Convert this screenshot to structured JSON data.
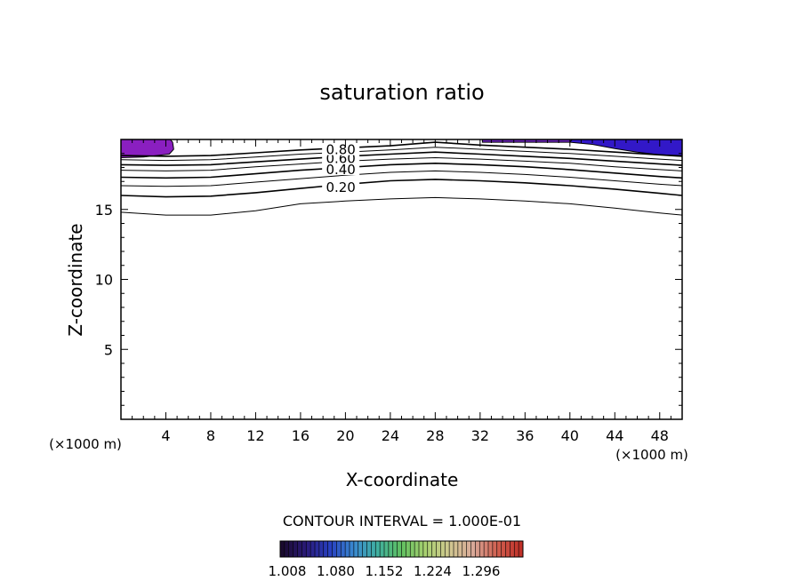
{
  "chart_data": {
    "type": "contour",
    "title": "saturation ratio",
    "xlabel": "X-coordinate",
    "ylabel": "Z-coordinate",
    "x_unit_left": "(×1000 m)",
    "x_unit_right": "(×1000 m)",
    "xlim": [
      0,
      50
    ],
    "ylim": [
      0,
      20
    ],
    "x_ticks": [
      4,
      8,
      12,
      16,
      20,
      24,
      28,
      32,
      36,
      40,
      44,
      48
    ],
    "y_ticks": [
      5,
      10,
      15
    ],
    "contour_interval_text": "CONTOUR INTERVAL = 1.000E-01",
    "contour_labels": [
      "0.80",
      "0.60",
      "0.40",
      "0.20"
    ],
    "contours": [
      {
        "level": 0.1,
        "label": "",
        "points": [
          [
            0,
            14.8
          ],
          [
            4,
            14.6
          ],
          [
            8,
            14.6
          ],
          [
            12,
            14.9
          ],
          [
            16,
            15.4
          ],
          [
            20,
            15.6
          ],
          [
            24,
            15.75
          ],
          [
            28,
            15.85
          ],
          [
            32,
            15.75
          ],
          [
            36,
            15.6
          ],
          [
            40,
            15.4
          ],
          [
            44,
            15.1
          ],
          [
            48,
            14.75
          ],
          [
            50,
            14.6
          ]
        ]
      },
      {
        "level": 0.2,
        "label": "0.20",
        "points": [
          [
            0,
            16.0
          ],
          [
            4,
            15.9
          ],
          [
            8,
            15.95
          ],
          [
            12,
            16.2
          ],
          [
            16,
            16.5
          ],
          [
            20,
            16.8
          ],
          [
            24,
            17.05
          ],
          [
            28,
            17.15
          ],
          [
            32,
            17.05
          ],
          [
            36,
            16.9
          ],
          [
            40,
            16.7
          ],
          [
            44,
            16.45
          ],
          [
            48,
            16.15
          ],
          [
            50,
            16.0
          ]
        ]
      },
      {
        "level": 0.3,
        "label": "",
        "points": [
          [
            0,
            16.7
          ],
          [
            4,
            16.65
          ],
          [
            8,
            16.7
          ],
          [
            12,
            16.95
          ],
          [
            16,
            17.2
          ],
          [
            20,
            17.45
          ],
          [
            24,
            17.65
          ],
          [
            28,
            17.75
          ],
          [
            32,
            17.65
          ],
          [
            36,
            17.5
          ],
          [
            40,
            17.3
          ],
          [
            44,
            17.05
          ],
          [
            48,
            16.8
          ],
          [
            50,
            16.7
          ]
        ]
      },
      {
        "level": 0.4,
        "label": "0.40",
        "points": [
          [
            0,
            17.3
          ],
          [
            4,
            17.25
          ],
          [
            8,
            17.3
          ],
          [
            12,
            17.55
          ],
          [
            16,
            17.8
          ],
          [
            20,
            18.0
          ],
          [
            24,
            18.2
          ],
          [
            28,
            18.3
          ],
          [
            32,
            18.2
          ],
          [
            36,
            18.05
          ],
          [
            40,
            17.85
          ],
          [
            44,
            17.6
          ],
          [
            48,
            17.35
          ],
          [
            50,
            17.25
          ]
        ]
      },
      {
        "level": 0.5,
        "label": "",
        "points": [
          [
            0,
            17.8
          ],
          [
            4,
            17.75
          ],
          [
            8,
            17.8
          ],
          [
            12,
            18.05
          ],
          [
            16,
            18.25
          ],
          [
            20,
            18.45
          ],
          [
            24,
            18.6
          ],
          [
            28,
            18.7
          ],
          [
            32,
            18.6
          ],
          [
            36,
            18.45
          ],
          [
            40,
            18.3
          ],
          [
            44,
            18.05
          ],
          [
            48,
            17.85
          ],
          [
            50,
            17.75
          ]
        ]
      },
      {
        "level": 0.6,
        "label": "0.60",
        "points": [
          [
            0,
            18.2
          ],
          [
            4,
            18.15
          ],
          [
            8,
            18.2
          ],
          [
            12,
            18.4
          ],
          [
            16,
            18.6
          ],
          [
            20,
            18.8
          ],
          [
            24,
            18.95
          ],
          [
            28,
            19.1
          ],
          [
            32,
            18.95
          ],
          [
            36,
            18.8
          ],
          [
            40,
            18.65
          ],
          [
            44,
            18.45
          ],
          [
            48,
            18.25
          ],
          [
            50,
            18.15
          ]
        ]
      },
      {
        "level": 0.7,
        "label": "",
        "points": [
          [
            0,
            18.55
          ],
          [
            4,
            18.5
          ],
          [
            8,
            18.55
          ],
          [
            12,
            18.75
          ],
          [
            16,
            18.95
          ],
          [
            20,
            19.1
          ],
          [
            24,
            19.25
          ],
          [
            28,
            19.45
          ],
          [
            32,
            19.3
          ],
          [
            36,
            19.15
          ],
          [
            40,
            19.0
          ],
          [
            44,
            18.8
          ],
          [
            48,
            18.6
          ],
          [
            50,
            18.5
          ]
        ]
      },
      {
        "level": 0.8,
        "label": "0.80",
        "points": [
          [
            0,
            18.85
          ],
          [
            4,
            18.8
          ],
          [
            8,
            18.85
          ],
          [
            12,
            19.05
          ],
          [
            16,
            19.25
          ],
          [
            20,
            19.4
          ],
          [
            24,
            19.55
          ],
          [
            28,
            19.8
          ],
          [
            32,
            19.6
          ],
          [
            36,
            19.45
          ],
          [
            40,
            19.3
          ],
          [
            44,
            19.1
          ],
          [
            48,
            18.9
          ],
          [
            50,
            18.8
          ]
        ]
      }
    ],
    "shaded_regions": [
      {
        "color": "#8a1fc0",
        "points": [
          [
            0,
            20
          ],
          [
            0,
            18.7
          ],
          [
            2,
            18.75
          ],
          [
            4.3,
            18.95
          ],
          [
            4.7,
            19.3
          ],
          [
            4.6,
            19.8
          ],
          [
            4.4,
            20
          ]
        ]
      },
      {
        "color": "#6a22b8",
        "points": [
          [
            32.2,
            20
          ],
          [
            32.2,
            19.8
          ],
          [
            40,
            19.8
          ],
          [
            40.2,
            20
          ]
        ]
      },
      {
        "color": "#3218c8",
        "points": [
          [
            40.2,
            20
          ],
          [
            40,
            19.8
          ],
          [
            42,
            19.65
          ],
          [
            44,
            19.35
          ],
          [
            46,
            19.1
          ],
          [
            48,
            18.9
          ],
          [
            50,
            18.85
          ],
          [
            50,
            20
          ]
        ]
      }
    ],
    "colorbar": {
      "tick_labels": [
        "1.008",
        "1.080",
        "1.152",
        "1.224",
        "1.296"
      ],
      "colors": [
        "#1a0a2e",
        "#2a1a7a",
        "#2840c0",
        "#3a8ad0",
        "#40b0a0",
        "#60c060",
        "#a8d070",
        "#d0c890",
        "#d8a898",
        "#d06050",
        "#c03028"
      ]
    }
  }
}
